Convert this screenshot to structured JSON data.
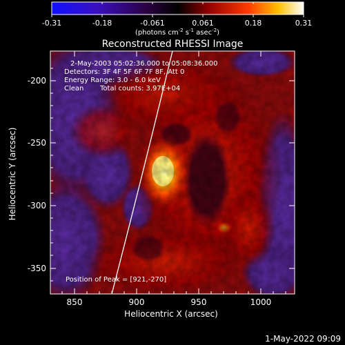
{
  "colorbar": {
    "ticks": [
      "-0.31",
      "-0.18",
      "-0.061",
      "0.061",
      "0.18",
      "0.31"
    ],
    "units_main": "(photons cm",
    "units_sup1": "-2",
    "units_s": " s",
    "units_sup2": "-1",
    "units_asec": " asec",
    "units_sup3": "-2",
    "units_close": ")",
    "gradient_colors": [
      "#1a1aff",
      "#3a00a0",
      "#000000",
      "#8a0000",
      "#ff3000",
      "#ffff00",
      "#ffffff"
    ]
  },
  "title": "Reconstructed RHESSI Image",
  "annotations": {
    "line1": "2-May-2003 05:02:36.000 to 05:08:36.000",
    "line2": "Detectors: 3F 4F 5F 6F 7F 8F, Att 0",
    "line3": "Energy Range: 3.0 - 6.0 keV",
    "line4_a": "Clean",
    "line4_b": "Total counts: 3.97E+04",
    "peak": "Position of Peak = [921,-270]"
  },
  "axes": {
    "xlabel": "Heliocentric X (arcsec)",
    "ylabel": "Heliocentric Y (arcsec)",
    "xticks": [
      "850",
      "900",
      "950",
      "1000"
    ],
    "yticks": [
      "-200",
      "-250",
      "-300",
      "-350"
    ]
  },
  "footer": {
    "timestamp": "1-May-2022 09:09"
  },
  "colors": {
    "background": "#000000",
    "text": "#ffffff",
    "limb_line": "#ffffff"
  }
}
